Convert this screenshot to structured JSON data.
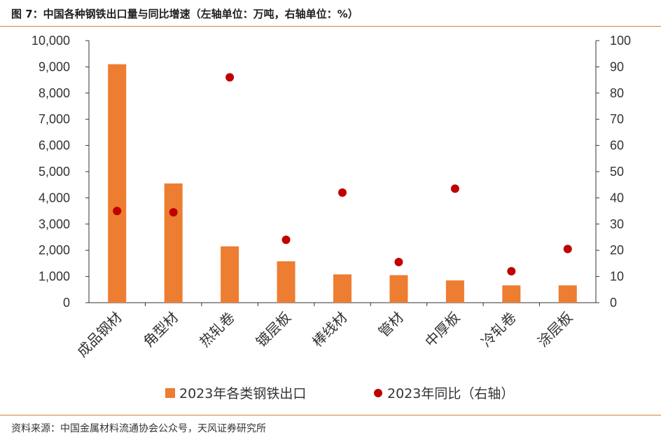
{
  "title": "图 7：中国各种钢铁出口量与同比增速（左轴单位：万吨，右轴单位：%）",
  "source": "资料来源：中国金属材料流通协会公众号，天风证券研究所",
  "colors": {
    "bar": "#ED7D31",
    "dot": "#C00000",
    "rule": "#C9882F",
    "axis": "#333333"
  },
  "chart_data": {
    "type": "bar",
    "categories": [
      "成品钢材",
      "角型材",
      "热轧卷",
      "镀层板",
      "棒线材",
      "管材",
      "中厚板",
      "冷轧卷",
      "涂层板"
    ],
    "series": [
      {
        "name": "2023年各类钢铁出口",
        "type": "bar",
        "axis": "left",
        "values": [
          9100,
          4550,
          2150,
          1580,
          1080,
          1050,
          850,
          660,
          660
        ]
      },
      {
        "name": "2023年同比（右轴）",
        "type": "scatter",
        "axis": "right",
        "values": [
          35.0,
          34.5,
          86.0,
          24.0,
          42.0,
          15.5,
          43.5,
          12.0,
          20.5
        ]
      }
    ],
    "left_axis": {
      "ylim": [
        0,
        10000
      ],
      "ticks": [
        "0",
        "1,000",
        "2,000",
        "3,000",
        "4,000",
        "5,000",
        "6,000",
        "7,000",
        "8,000",
        "9,000",
        "10,000"
      ]
    },
    "right_axis": {
      "ylim": [
        0,
        100
      ],
      "ticks": [
        "0",
        "10",
        "20",
        "30",
        "40",
        "50",
        "60",
        "70",
        "80",
        "90",
        "100"
      ]
    },
    "legend_position": "bottom",
    "grid": false
  }
}
